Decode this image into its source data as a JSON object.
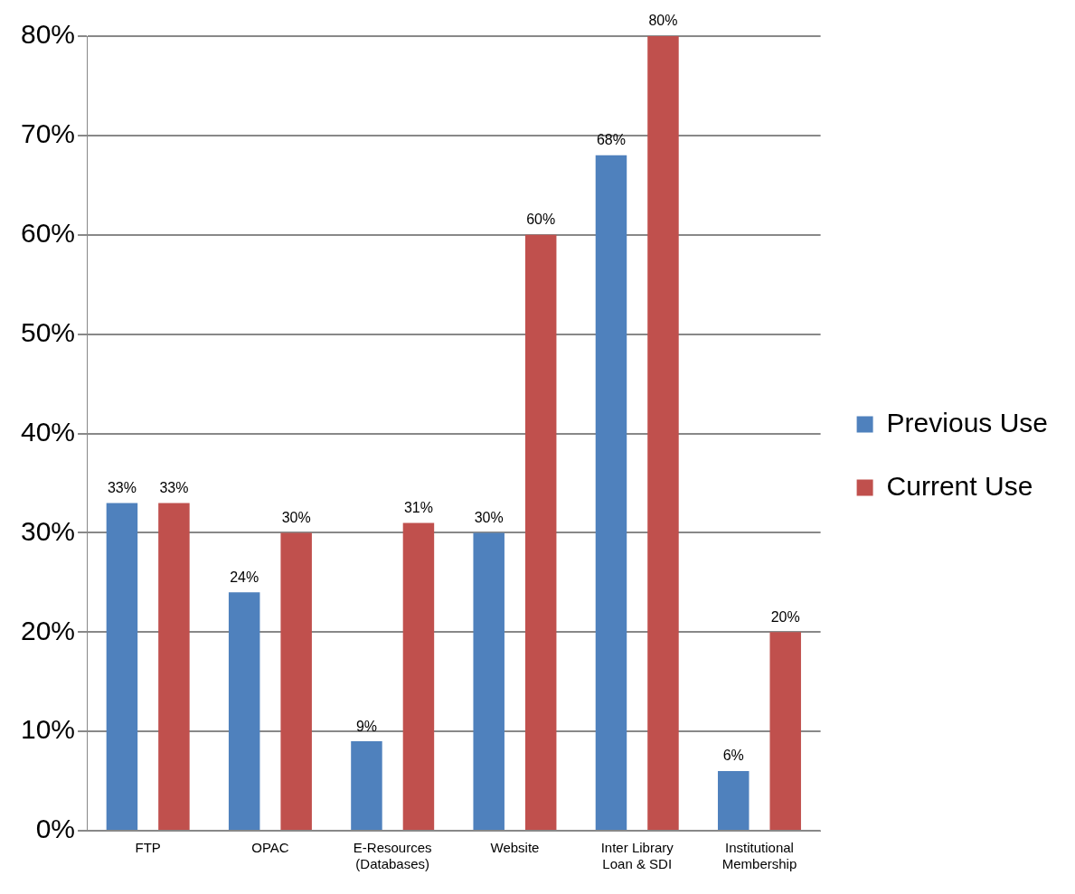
{
  "chart_data": {
    "type": "bar",
    "categories": [
      "FTP",
      "OPAC",
      "E-Resources (Databases)",
      "Website",
      "Inter Library Loan & SDI",
      "Institutional Membership"
    ],
    "series": [
      {
        "name": "Previous Use",
        "color": "#4f81bd",
        "values": [
          33,
          24,
          9,
          30,
          68,
          6
        ],
        "value_labels": [
          "33%",
          "24%",
          "9%",
          "30%",
          "68%",
          "6%"
        ]
      },
      {
        "name": "Current Use",
        "color": "#c0504d",
        "values": [
          33,
          30,
          31,
          60,
          80,
          20
        ],
        "value_labels": [
          "33%",
          "30%",
          "31%",
          "60%",
          "80%",
          "20%"
        ]
      }
    ],
    "ylim": [
      0,
      80
    ],
    "yticks": [
      {
        "value": 0,
        "label": "0%"
      },
      {
        "value": 10,
        "label": "10%"
      },
      {
        "value": 20,
        "label": "20%"
      },
      {
        "value": 30,
        "label": "30%"
      },
      {
        "value": 40,
        "label": "40%"
      },
      {
        "value": 50,
        "label": "50%"
      },
      {
        "value": 60,
        "label": "60%"
      },
      {
        "value": 70,
        "label": "70%"
      },
      {
        "value": 80,
        "label": "80%"
      }
    ],
    "grid": "y",
    "legend": "right"
  }
}
